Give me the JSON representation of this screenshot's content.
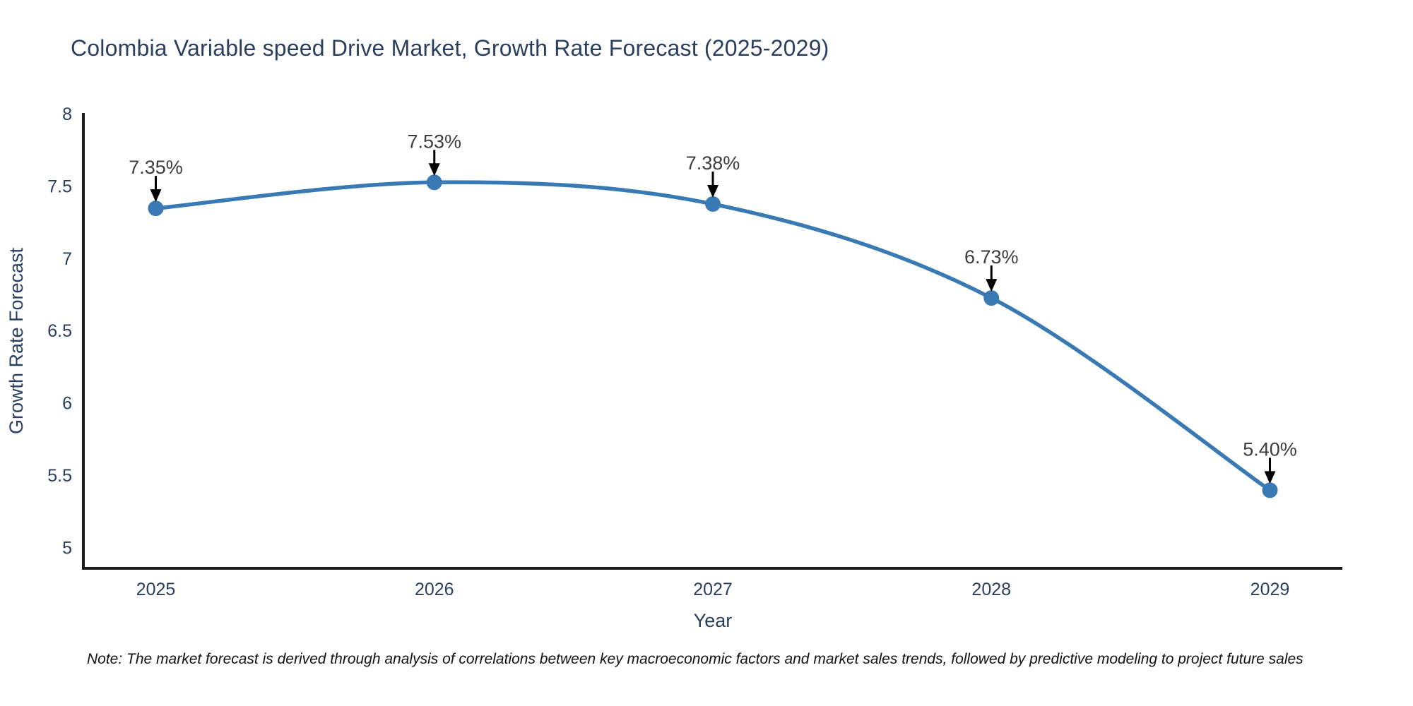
{
  "title": "Colombia Variable speed Drive Market, Growth Rate Forecast (2025-2029)",
  "note": "Note: The market forecast is derived through analysis of correlations between key macroeconomic factors and market sales trends, followed by predictive modeling to project future sales",
  "chart_data": {
    "type": "line",
    "title": "Colombia Variable speed Drive Market, Growth Rate Forecast (2025-2029)",
    "xlabel": "Year",
    "ylabel": "Growth Rate Forecast",
    "x": [
      2025,
      2026,
      2027,
      2028,
      2029
    ],
    "series": [
      {
        "name": "Growth Rate Forecast",
        "values": [
          7.35,
          7.53,
          7.38,
          6.73,
          5.4
        ]
      }
    ],
    "point_labels": [
      "7.35%",
      "7.53%",
      "7.38%",
      "6.73%",
      "5.40%"
    ],
    "x_tick_labels": [
      "2025",
      "2026",
      "2027",
      "2028",
      "2029"
    ],
    "x_tick_values": [
      2025,
      2026,
      2027,
      2028,
      2029
    ],
    "y_ticks": [
      5,
      5.5,
      6,
      6.5,
      7,
      7.5,
      8
    ],
    "xlim": [
      2024.74,
      2029.26
    ],
    "ylim": [
      4.86,
      8.01
    ],
    "grid": false,
    "legend": "none",
    "line_shape": "spline",
    "annotations_have_arrows": true,
    "colors": {
      "line": "#3a7ab4",
      "marker": "#3a7ab4",
      "arrow": "#000000",
      "annotation_text": "#3d3d3d",
      "axis_line": "#1a1a1a",
      "tick_text": "#2a3f5f",
      "title_text": "#2a3f5f",
      "background": "#ffffff"
    }
  }
}
